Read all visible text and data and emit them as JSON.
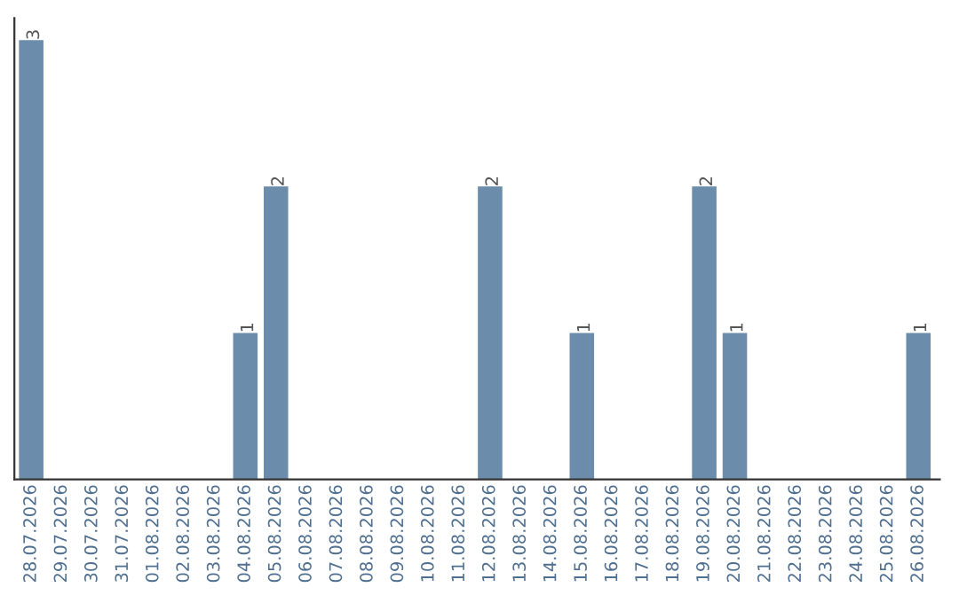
{
  "chart_data": {
    "type": "bar",
    "categories": [
      "28.07.2026",
      "29.07.2026",
      "30.07.2026",
      "31.07.2026",
      "01.08.2026",
      "02.08.2026",
      "03.08.2026",
      "04.08.2026",
      "05.08.2026",
      "06.08.2026",
      "07.08.2026",
      "08.08.2026",
      "09.08.2026",
      "10.08.2026",
      "11.08.2026",
      "12.08.2026",
      "13.08.2026",
      "14.08.2026",
      "15.08.2026",
      "16.08.2026",
      "17.08.2026",
      "18.08.2026",
      "19.08.2026",
      "20.08.2026",
      "21.08.2026",
      "22.08.2026",
      "23.08.2026",
      "24.08.2026",
      "25.08.2026",
      "26.08.2026"
    ],
    "values": [
      3,
      0,
      0,
      0,
      0,
      0,
      0,
      1,
      2,
      0,
      0,
      0,
      0,
      0,
      0,
      2,
      0,
      0,
      1,
      0,
      0,
      0,
      2,
      1,
      0,
      0,
      0,
      0,
      0,
      1
    ],
    "color": "#6b8caa",
    "value_labels": [
      "3",
      null,
      null,
      null,
      null,
      null,
      null,
      "1",
      "2",
      null,
      null,
      null,
      null,
      null,
      null,
      "2",
      null,
      null,
      "1",
      null,
      null,
      null,
      "2",
      "1",
      null,
      null,
      null,
      null,
      null,
      "1"
    ],
    "tick_labels": "x",
    "grid": false,
    "legend": false
  }
}
